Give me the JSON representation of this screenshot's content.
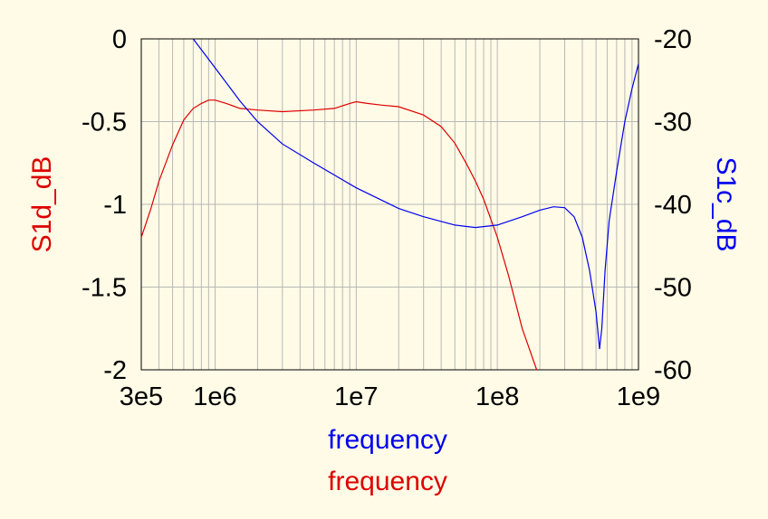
{
  "chart_data": {
    "type": "line",
    "x_scale": "log",
    "xlim": [
      300000,
      1000000000
    ],
    "x_ticks": [
      {
        "value": 300000,
        "label": "3e5"
      },
      {
        "value": 1000000,
        "label": "1e6"
      },
      {
        "value": 10000000,
        "label": "1e7"
      },
      {
        "value": 100000000,
        "label": "1e8"
      },
      {
        "value": 1000000000,
        "label": "1e9"
      }
    ],
    "xlabels": [
      {
        "text": "frequency",
        "color": "#0000EE"
      },
      {
        "text": "frequency",
        "color": "#DD0000"
      }
    ],
    "left_axis": {
      "label": "S1d_dB",
      "color": "#DD0000",
      "ylim": [
        -2,
        0
      ],
      "ticks": [
        {
          "value": 0,
          "label": "0"
        },
        {
          "value": -0.5,
          "label": "-0.5"
        },
        {
          "value": -1,
          "label": "-1"
        },
        {
          "value": -1.5,
          "label": "-1.5"
        },
        {
          "value": -2,
          "label": "-2"
        }
      ]
    },
    "right_axis": {
      "label": "S1c_dB",
      "color": "#0000EE",
      "ylim": [
        -60,
        -20
      ],
      "ticks": [
        {
          "value": -20,
          "label": "-20"
        },
        {
          "value": -30,
          "label": "-30"
        },
        {
          "value": -40,
          "label": "-40"
        },
        {
          "value": -50,
          "label": "-50"
        },
        {
          "value": -60,
          "label": "-60"
        }
      ]
    },
    "grid": true,
    "series": [
      {
        "name": "S1d_dB",
        "axis": "left",
        "color": "#DD0000",
        "x": [
          300000,
          350000,
          400000,
          500000,
          600000,
          700000,
          800000,
          900000,
          1000000,
          1200000,
          1500000,
          2000000,
          3000000,
          5000000,
          7000000,
          9000000,
          10000000,
          12000000,
          15000000,
          20000000,
          30000000,
          40000000,
          50000000,
          60000000,
          70000000,
          80000000,
          100000000,
          120000000,
          150000000,
          190000000
        ],
        "y": [
          -1.2,
          -1.03,
          -0.86,
          -0.64,
          -0.49,
          -0.42,
          -0.39,
          -0.37,
          -0.37,
          -0.39,
          -0.42,
          -0.43,
          -0.44,
          -0.43,
          -0.42,
          -0.39,
          -0.38,
          -0.39,
          -0.4,
          -0.41,
          -0.46,
          -0.53,
          -0.63,
          -0.75,
          -0.86,
          -0.97,
          -1.2,
          -1.43,
          -1.75,
          -2.0
        ]
      },
      {
        "name": "S1c_dB",
        "axis": "right",
        "color": "#0000EE",
        "x": [
          700000,
          1000000,
          1500000,
          2000000,
          3000000,
          5000000,
          10000000,
          20000000,
          30000000,
          50000000,
          70000000,
          100000000,
          150000000,
          200000000,
          250000000,
          300000000,
          350000000,
          400000000,
          450000000,
          500000000,
          530000000,
          550000000,
          580000000,
          620000000,
          700000000,
          800000000,
          900000000,
          1000000000
        ],
        "y": [
          -20,
          -23.5,
          -27.5,
          -30,
          -32.7,
          -35,
          -38,
          -40.5,
          -41.5,
          -42.5,
          -42.8,
          -42.5,
          -41.5,
          -40.7,
          -40.3,
          -40.4,
          -41.5,
          -44,
          -48,
          -53,
          -57.5,
          -55,
          -48,
          -42,
          -36,
          -30,
          -26,
          -23
        ]
      }
    ]
  }
}
